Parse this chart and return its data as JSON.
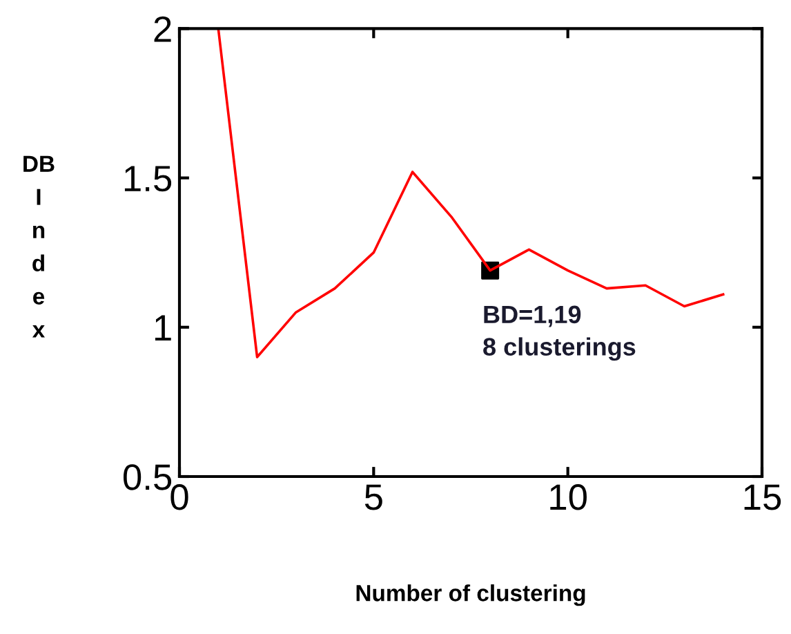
{
  "chart_data": {
    "type": "line",
    "xlabel": "Number of clustering",
    "ylabel": "DB Index",
    "x": [
      1,
      2,
      3,
      4,
      5,
      6,
      7,
      8,
      9,
      10,
      11,
      12,
      13,
      14
    ],
    "series": [
      {
        "color": "#ff0000",
        "values": [
          2.0,
          0.9,
          1.05,
          1.13,
          1.25,
          1.52,
          1.37,
          1.19,
          1.26,
          1.19,
          1.13,
          1.14,
          1.07,
          1.11
        ]
      },
      {
        "type": "scatter",
        "color": "#000000",
        "marker": "square",
        "x": [
          8
        ],
        "values": [
          1.19
        ]
      }
    ],
    "annotations": [
      {
        "text": "BD=1,19\n8 clusterings",
        "x": 8,
        "y": 1.19
      }
    ],
    "xlim": [
      0,
      15
    ],
    "ylim": [
      0.5,
      2
    ],
    "xticks": [
      0,
      5,
      10,
      15
    ],
    "yticks": [
      0.5,
      1,
      1.5,
      2
    ],
    "grid": false,
    "legend": false,
    "marker": "none",
    "line_style": "solid"
  }
}
